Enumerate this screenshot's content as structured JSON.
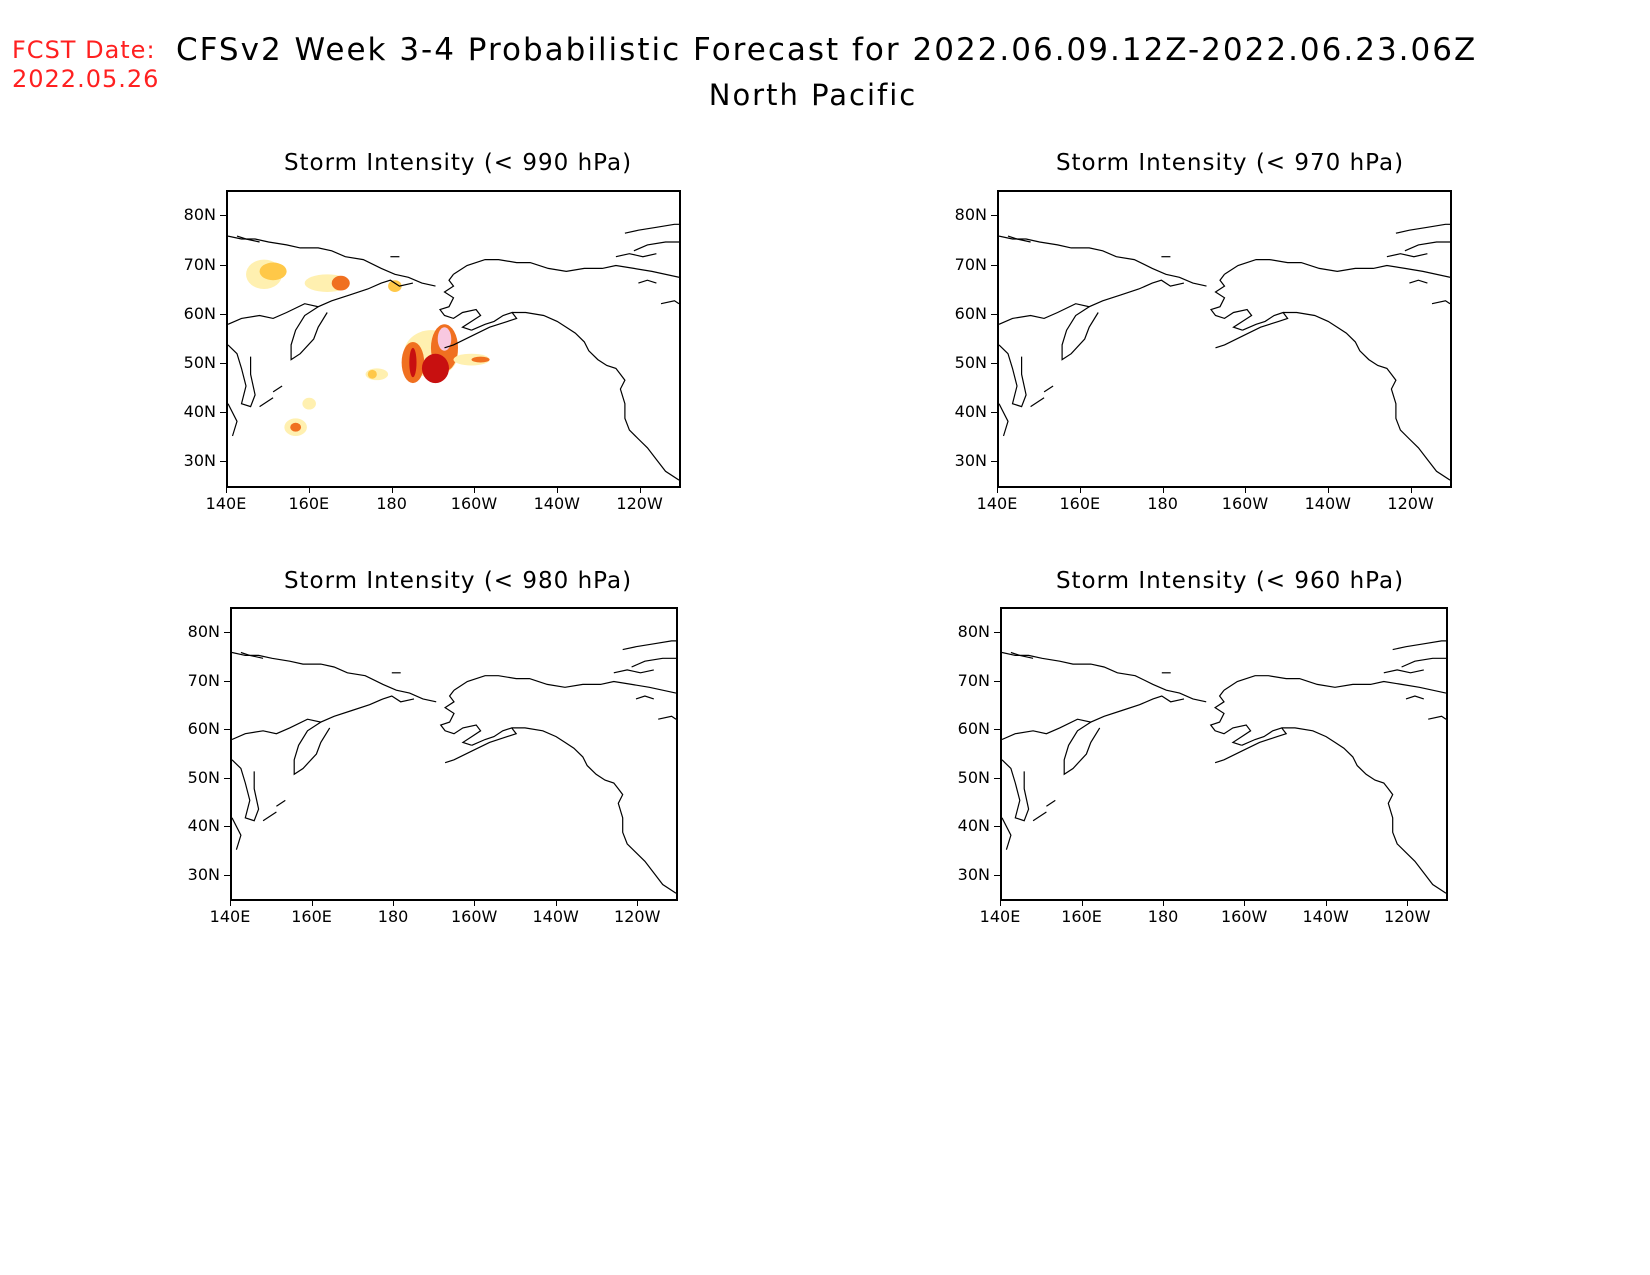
{
  "header": {
    "fcst_label": "FCST Date:",
    "fcst_date": "2022.05.26",
    "title": "CFSv2 Week 3-4 Probabilistic Forecast for 2022.06.09.12Z-2022.06.23.06Z",
    "region": "North Pacific"
  },
  "map_extent": {
    "lon_ticks": [
      "140E",
      "160E",
      "180",
      "160W",
      "140W",
      "120W"
    ],
    "lat_ticks": [
      "80N",
      "70N",
      "60N",
      "50N",
      "40N",
      "30N"
    ]
  },
  "panels": [
    {
      "title": "Storm Intensity (< 990 hPa)",
      "has_shading": true
    },
    {
      "title": "Storm Intensity (< 970 hPa)",
      "has_shading": false
    },
    {
      "title": "Storm Intensity (< 980 hPa)",
      "has_shading": false
    },
    {
      "title": "Storm Intensity (< 960 hPa)",
      "has_shading": false
    }
  ],
  "shading_colors": {
    "low": "#fff0b0",
    "mid": "#ffc848",
    "high": "#f07020",
    "higher": "#c81010",
    "highest": "#f8c8e0"
  },
  "fcst_color": "#ff2020"
}
